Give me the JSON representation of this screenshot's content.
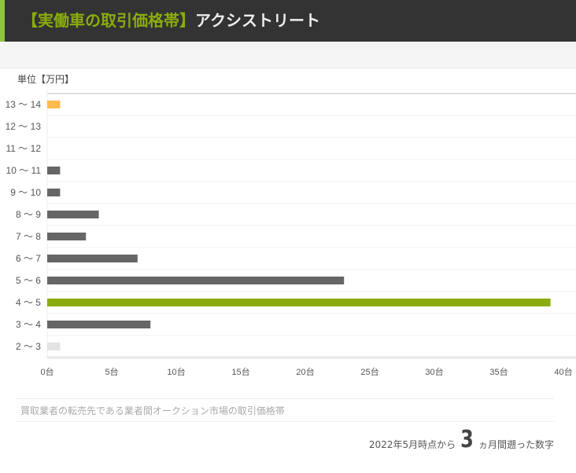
{
  "header": {
    "bracket_title": "【実働車の取引価格帯】",
    "model": "アクシストリート"
  },
  "unit_label": "単位【万円】",
  "chart_data": {
    "type": "bar",
    "orientation": "horizontal",
    "categories": [
      "13 ～ 14",
      "12 ～ 13",
      "11 ～ 12",
      "10 ～ 11",
      "9 ～ 10",
      "8 ～ 9",
      "7 ～ 8",
      "6 ～ 7",
      "5 ～ 6",
      "4 ～ 5",
      "3 ～ 4",
      "2 ～ 3"
    ],
    "values": [
      1,
      0,
      0,
      1,
      1,
      4,
      3,
      7,
      23,
      39,
      8,
      1
    ],
    "colors": [
      "#ffbb4d",
      "#666666",
      "#666666",
      "#666666",
      "#666666",
      "#666666",
      "#666666",
      "#666666",
      "#666666",
      "#8aac0c",
      "#666666",
      "#e3e3e3"
    ],
    "xlim": [
      0,
      40
    ],
    "xticks": [
      "0台",
      "5台",
      "10台",
      "15台",
      "20台",
      "25台",
      "30台",
      "35台",
      "40台"
    ],
    "grid": true
  },
  "note": "買取業者の転売先である業者間オークション市場の取引価格帯",
  "footer": {
    "prefix": "2022年5月時点から",
    "months": "3",
    "suffix": "ヵ月間遡った数字"
  }
}
